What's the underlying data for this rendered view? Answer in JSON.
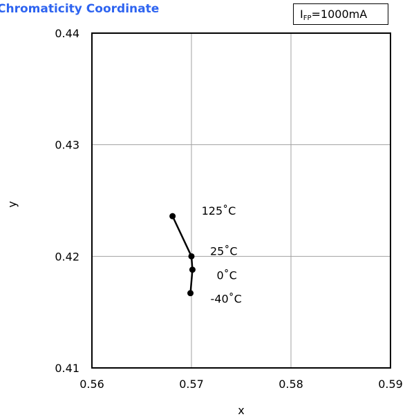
{
  "chart_data": {
    "type": "line",
    "title": "Chromaticity Coordinate",
    "condition": {
      "symbol": "I",
      "subscript": "FP",
      "value": "=1000mA"
    },
    "xlabel": "x",
    "ylabel": "y",
    "xlim": [
      0.56,
      0.59
    ],
    "ylim": [
      0.41,
      0.44
    ],
    "x_ticks": [
      "0.56",
      "0.57",
      "0.58",
      "0.59"
    ],
    "y_ticks": [
      "0.41",
      "0.42",
      "0.43",
      "0.44"
    ],
    "grid": true,
    "series": [
      {
        "points": [
          {
            "x": 0.5681,
            "y": 0.4236,
            "label": "125˚C"
          },
          {
            "x": 0.57,
            "y": 0.42,
            "label": "25˚C"
          },
          {
            "x": 0.5701,
            "y": 0.4188,
            "label": "0˚C"
          },
          {
            "x": 0.5699,
            "y": 0.4167,
            "label": "-40˚C"
          }
        ]
      }
    ],
    "colors": {
      "title": "#2e64f0",
      "line": "#000000",
      "grid": "#a0a0a0"
    }
  }
}
